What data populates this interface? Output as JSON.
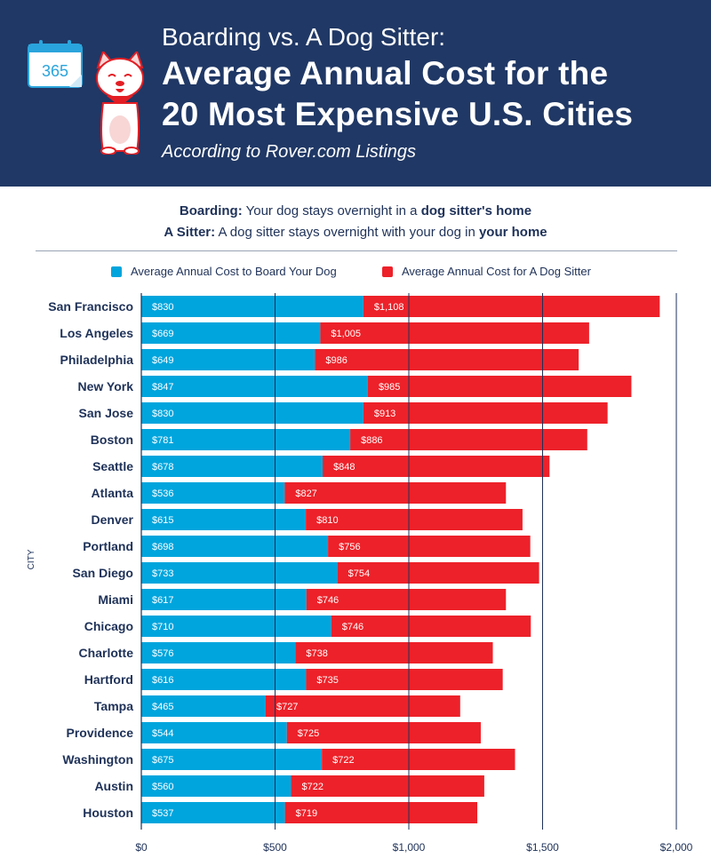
{
  "header": {
    "line1": "Boarding vs. A Dog Sitter:",
    "line2": "Average Annual Cost for the",
    "line3": "20 Most Expensive U.S. Cities",
    "subtitle": "According to Rover.com Listings",
    "calendar_text": "365",
    "icons": [
      "calendar-icon",
      "dog-illustration"
    ]
  },
  "definitions": {
    "boarding_label": "Boarding:",
    "boarding_text_a": " Your dog stays overnight in a ",
    "boarding_text_b": "dog sitter's home",
    "sitter_label": "A Sitter:",
    "sitter_text_a": " A dog sitter stays overnight with your dog in ",
    "sitter_text_b": "your home"
  },
  "colors": {
    "boarding": "#00a5dd",
    "sitter": "#ed2129",
    "header_bg": "#203865",
    "text": "#1e3158"
  },
  "chart_data": {
    "type": "bar",
    "orientation": "horizontal",
    "stacked": true,
    "ylabel": "CITY",
    "xlabel": "",
    "xlim": [
      0,
      2000
    ],
    "xticks": [
      0,
      500,
      1000,
      1500,
      2000
    ],
    "xtick_labels": [
      "$0",
      "$500",
      "$1,000",
      "$1,500",
      "$2,000"
    ],
    "grid": true,
    "legend_position": "top",
    "categories": [
      "San Francisco",
      "Los Angeles",
      "Philadelphia",
      "New York",
      "San Jose",
      "Boston",
      "Seattle",
      "Atlanta",
      "Denver",
      "Portland",
      "San Diego",
      "Miami",
      "Chicago",
      "Charlotte",
      "Hartford",
      "Tampa",
      "Providence",
      "Washington",
      "Austin",
      "Houston"
    ],
    "series": [
      {
        "name": "Average Annual Cost to Board Your Dog",
        "values": [
          830,
          669,
          649,
          847,
          830,
          781,
          678,
          536,
          615,
          698,
          733,
          617,
          710,
          576,
          616,
          465,
          544,
          675,
          560,
          537
        ],
        "labels": [
          "$830",
          "$669",
          "$649",
          "$847",
          "$830",
          "$781",
          "$678",
          "$536",
          "$615",
          "$698",
          "$733",
          "$617",
          "$710",
          "$576",
          "$616",
          "$465",
          "$544",
          "$675",
          "$560",
          "$537"
        ]
      },
      {
        "name": "Average Annual Cost for A Dog Sitter",
        "values": [
          1108,
          1005,
          986,
          985,
          913,
          886,
          848,
          827,
          810,
          756,
          754,
          746,
          746,
          738,
          735,
          727,
          725,
          722,
          722,
          719
        ],
        "labels": [
          "$1,108",
          "$1,005",
          "$986",
          "$985",
          "$913",
          "$886",
          "$848",
          "$827",
          "$810",
          "$756",
          "$754",
          "$746",
          "$746",
          "$738",
          "$735",
          "$727",
          "$725",
          "$722",
          "$722",
          "$719"
        ]
      }
    ]
  }
}
